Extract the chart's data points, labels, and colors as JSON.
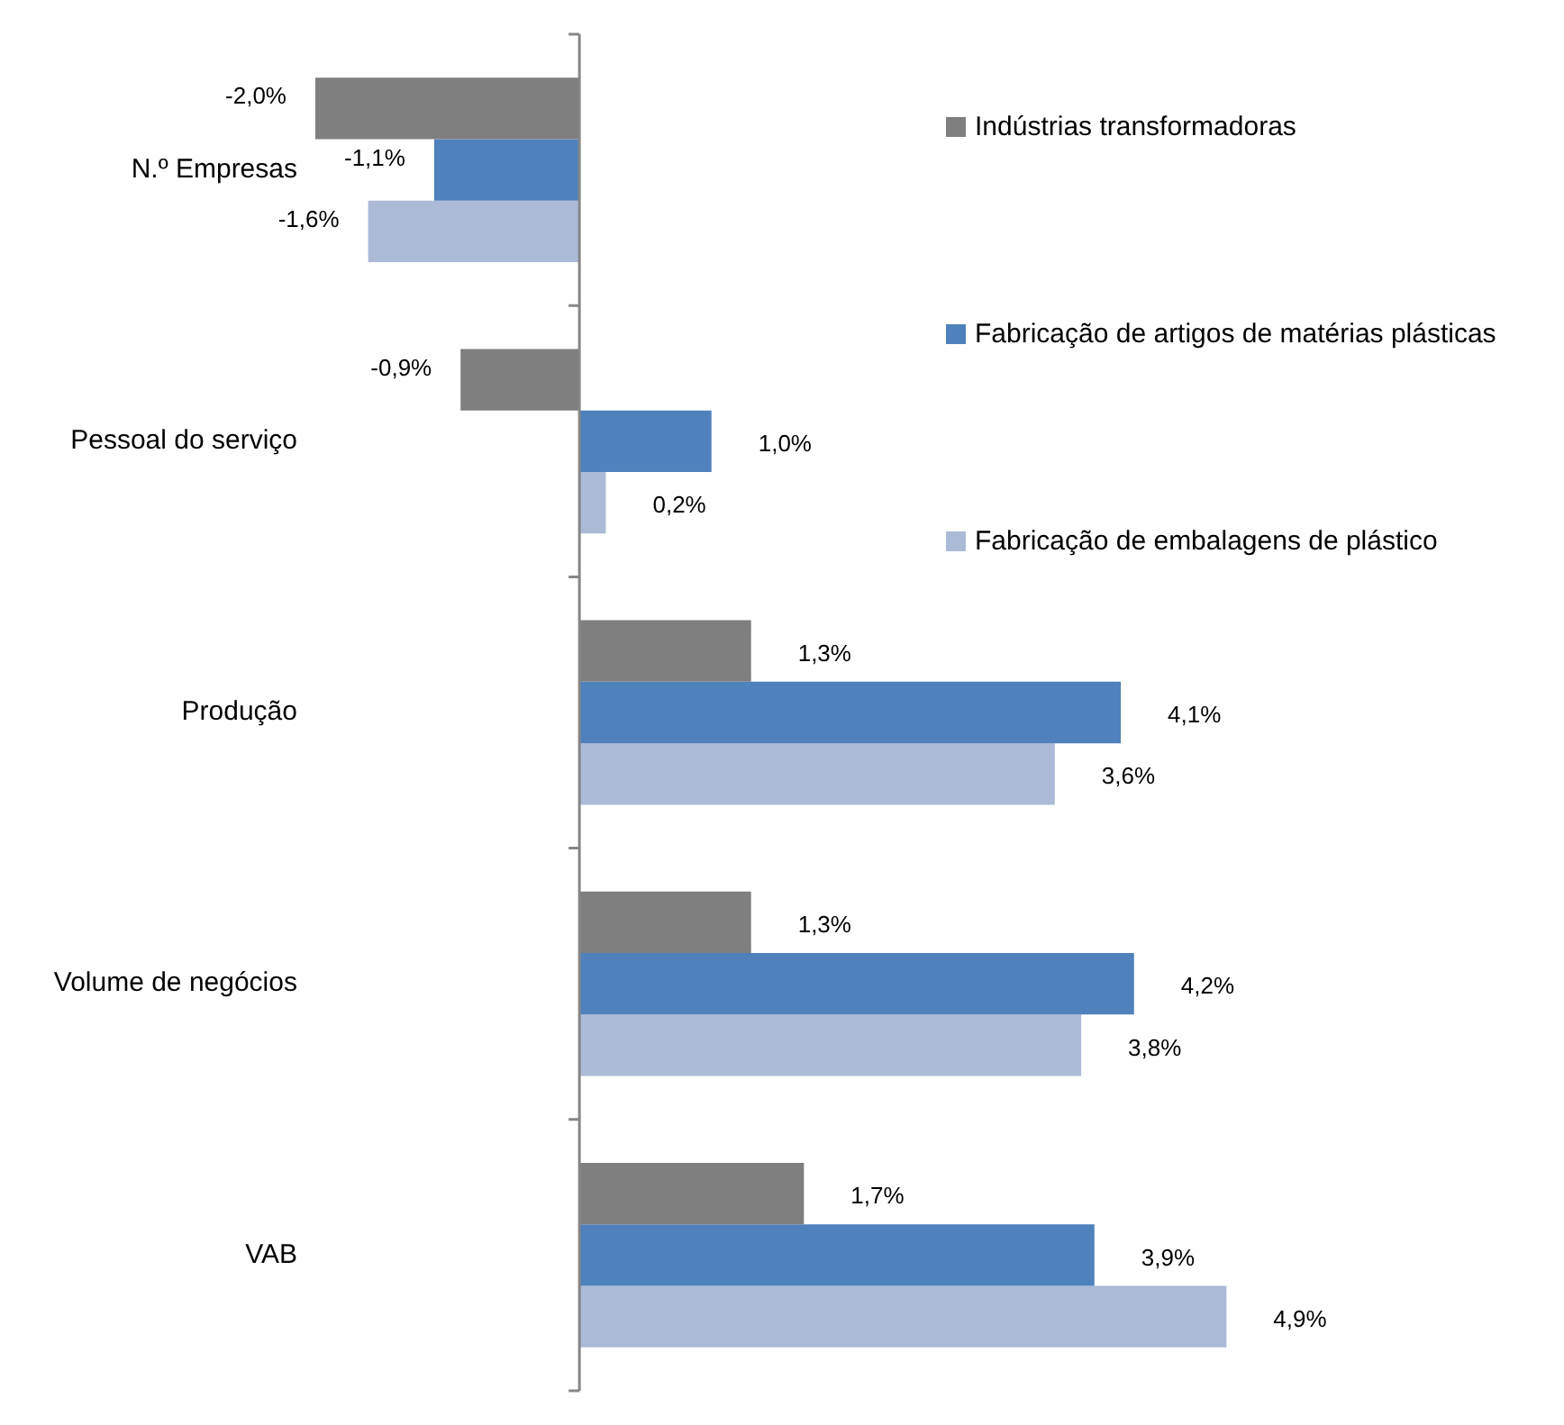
{
  "chart_data": {
    "type": "bar",
    "orientation": "horizontal",
    "categories": [
      "N.º Empresas",
      "Pessoal do serviço",
      "Produção",
      "Volume de negócios",
      "VAB"
    ],
    "series": [
      {
        "name": "Indústrias transformadoras",
        "color": "#7f7f7f",
        "values": [
          -2.0,
          -0.9,
          1.3,
          1.3,
          1.7
        ],
        "value_labels": [
          "-2,0%",
          "-0,9%",
          "1,3%",
          "1,3%",
          "1,7%"
        ]
      },
      {
        "name": "Fabricação de artigos de matérias plásticas",
        "color": "#4f81bd",
        "values": [
          -1.1,
          1.0,
          4.1,
          4.2,
          3.9
        ],
        "value_labels": [
          "-1,1%",
          "1,0%",
          "4,1%",
          "4,2%",
          "3,9%"
        ]
      },
      {
        "name": "Fabricação de embalagens de plástico",
        "color": "#aabad7",
        "values": [
          -1.6,
          0.2,
          3.6,
          3.8,
          4.9
        ],
        "value_labels": [
          "-1,6%",
          "0,2%",
          "3,6%",
          "3,8%",
          "4,9%"
        ]
      }
    ],
    "tick_labels": "y",
    "legend": "top right"
  }
}
